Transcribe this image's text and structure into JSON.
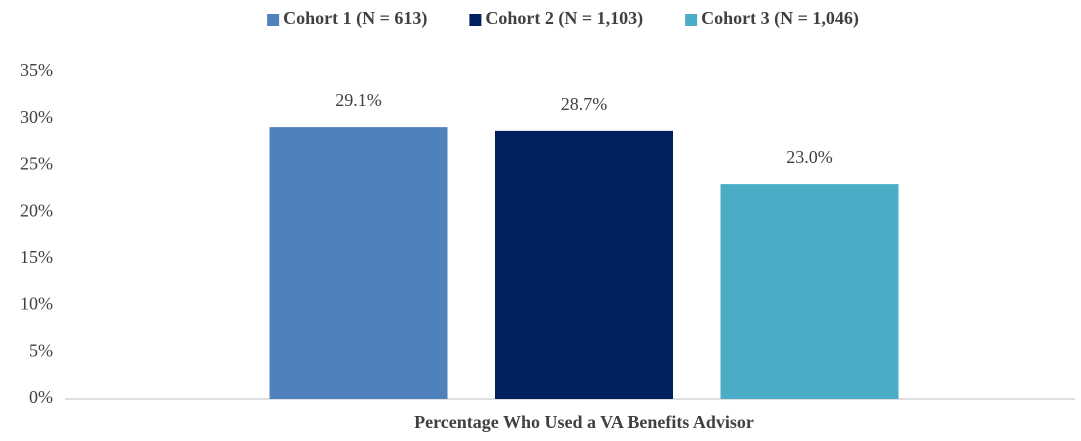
{
  "chart_data": {
    "type": "bar",
    "categories": [
      "Percentage Who Used a VA Benefits Advisor"
    ],
    "series": [
      {
        "name": "Cohort 1 (N = 613)",
        "color": "#4f81bd",
        "values": [
          29.1
        ],
        "value_labels": [
          "29.1%"
        ]
      },
      {
        "name": "Cohort 2 (N = 1,103)",
        "color": "#002060",
        "values": [
          28.7
        ],
        "value_labels": [
          "28.7%"
        ]
      },
      {
        "name": "Cohort 3 (N = 1,046)",
        "color": "#4bacc6",
        "values": [
          23.0
        ],
        "value_labels": [
          "23.0%"
        ]
      }
    ],
    "ylim": [
      0,
      35
    ],
    "yticks": [
      {
        "value": 0,
        "label": "0%"
      },
      {
        "value": 5,
        "label": "5%"
      },
      {
        "value": 10,
        "label": "10%"
      },
      {
        "value": 15,
        "label": "15%"
      },
      {
        "value": 20,
        "label": "20%"
      },
      {
        "value": 25,
        "label": "25%"
      },
      {
        "value": 30,
        "label": "30%"
      },
      {
        "value": 35,
        "label": "35%"
      }
    ],
    "grid": false,
    "legend": "top"
  }
}
